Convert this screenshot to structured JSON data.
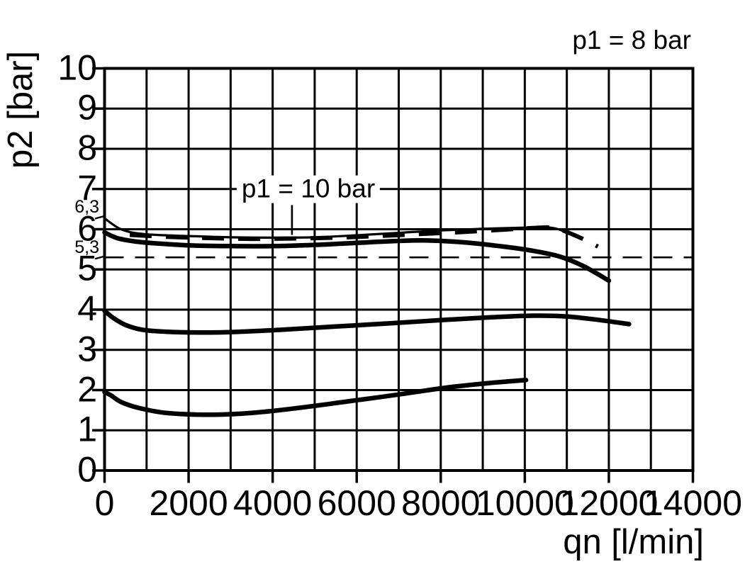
{
  "page": {
    "background": "#ffffff",
    "ink": "#000000"
  },
  "title": "p1 = 8 bar",
  "chart_data": {
    "type": "line",
    "title": "p1 = 8 bar",
    "xlabel": "qn [l/min]",
    "ylabel": "p2 [bar]",
    "xlim": [
      0,
      14000
    ],
    "ylim": [
      0,
      10
    ],
    "grid": true,
    "x_grid_step": 1000,
    "y_grid_step": 1,
    "x_tick_step": 2000,
    "x_tick_labels": [
      "0",
      "2000",
      "4000",
      "6000",
      "8000",
      "10000",
      "12000",
      "14000"
    ],
    "y_tick_labels": [
      "10",
      "9",
      "8",
      "7",
      "6",
      "5",
      "4",
      "3",
      "2",
      "1",
      "0"
    ],
    "extra_y_marks": [
      {
        "label": "6,3",
        "value": 6.3
      },
      {
        "label": "5,3",
        "value": 5.3
      }
    ],
    "annotation": {
      "text": "p1 = 10 bar",
      "center": {
        "q": 4850,
        "p": 7.0
      },
      "leader": {
        "q": 4460,
        "p_from": 6.6,
        "p_to": 5.86
      }
    },
    "legend": "none",
    "series": [
      {
        "name": "thin-solid-setpoint-6.3",
        "style": "solid",
        "stroke_width": 3.2,
        "points": [
          [
            0,
            6.27
          ],
          [
            350,
            6.02
          ],
          [
            700,
            5.91
          ],
          [
            1200,
            5.86
          ],
          [
            2000,
            5.83
          ],
          [
            3000,
            5.8
          ],
          [
            4000,
            5.79
          ],
          [
            5000,
            5.8
          ],
          [
            6000,
            5.85
          ],
          [
            7000,
            5.91
          ],
          [
            8000,
            5.97
          ],
          [
            9000,
            6.01
          ],
          [
            10000,
            6.04
          ],
          [
            10500,
            6.05
          ],
          [
            10800,
            6.0
          ],
          [
            11060,
            5.88
          ]
        ]
      },
      {
        "name": "dashed-p1-10bar",
        "style": "dashed",
        "stroke_width": 6,
        "dash": [
          31,
          20
        ],
        "points": [
          [
            600,
            5.86
          ],
          [
            1500,
            5.81
          ],
          [
            2500,
            5.78
          ],
          [
            3500,
            5.76
          ],
          [
            4500,
            5.77
          ],
          [
            5500,
            5.79
          ],
          [
            6500,
            5.83
          ],
          [
            7500,
            5.88
          ],
          [
            8500,
            5.93
          ],
          [
            9500,
            5.99
          ],
          [
            10200,
            6.03
          ],
          [
            10700,
            6.03
          ],
          [
            11230,
            5.83
          ],
          [
            11740,
            5.57
          ]
        ]
      },
      {
        "name": "dashed-reference-5.3",
        "style": "dashed",
        "stroke_width": 2.6,
        "dash": [
          27,
          16
        ],
        "points": [
          [
            0,
            5.3
          ],
          [
            14000,
            5.3
          ]
        ]
      },
      {
        "name": "thick-upper-setpoint-6",
        "style": "solid",
        "stroke_width": 6.5,
        "points": [
          [
            0,
            5.92
          ],
          [
            300,
            5.78
          ],
          [
            700,
            5.7
          ],
          [
            1200,
            5.65
          ],
          [
            2000,
            5.6
          ],
          [
            3000,
            5.58
          ],
          [
            4000,
            5.58
          ],
          [
            5000,
            5.61
          ],
          [
            6000,
            5.66
          ],
          [
            7000,
            5.71
          ],
          [
            7700,
            5.72
          ],
          [
            8600,
            5.67
          ],
          [
            9400,
            5.58
          ],
          [
            10100,
            5.48
          ],
          [
            10800,
            5.33
          ],
          [
            11400,
            5.08
          ],
          [
            12000,
            4.72
          ]
        ]
      },
      {
        "name": "thick-middle-setpoint-4",
        "style": "solid",
        "stroke_width": 6.5,
        "points": [
          [
            0,
            3.97
          ],
          [
            200,
            3.8
          ],
          [
            500,
            3.62
          ],
          [
            900,
            3.5
          ],
          [
            1500,
            3.45
          ],
          [
            2300,
            3.43
          ],
          [
            3200,
            3.45
          ],
          [
            4200,
            3.5
          ],
          [
            5500,
            3.58
          ],
          [
            6800,
            3.66
          ],
          [
            8000,
            3.74
          ],
          [
            9200,
            3.81
          ],
          [
            10200,
            3.85
          ],
          [
            11000,
            3.83
          ],
          [
            11800,
            3.74
          ],
          [
            12480,
            3.64
          ]
        ]
      },
      {
        "name": "thick-lower-setpoint-2",
        "style": "solid",
        "stroke_width": 6.5,
        "points": [
          [
            0,
            1.95
          ],
          [
            150,
            1.87
          ],
          [
            400,
            1.7
          ],
          [
            800,
            1.56
          ],
          [
            1400,
            1.44
          ],
          [
            2200,
            1.39
          ],
          [
            3000,
            1.4
          ],
          [
            3800,
            1.46
          ],
          [
            4800,
            1.58
          ],
          [
            5800,
            1.72
          ],
          [
            7000,
            1.89
          ],
          [
            8200,
            2.07
          ],
          [
            9200,
            2.18
          ],
          [
            10030,
            2.25
          ]
        ]
      }
    ]
  }
}
